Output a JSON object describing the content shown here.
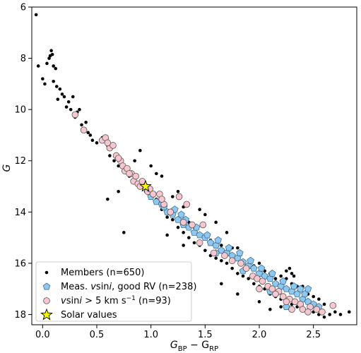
{
  "chart_data": {
    "type": "scatter",
    "xlabel_main": "G",
    "xlabel_sub1": "BP",
    "xlabel_mid": " − G",
    "xlabel_sub2": "RP",
    "ylabel": "G",
    "xlim": [
      -0.1,
      2.9
    ],
    "ylim": [
      18.4,
      6.0
    ],
    "y_inverted": true,
    "x_ticks": [
      0.0,
      0.5,
      1.0,
      1.5,
      2.0,
      2.5
    ],
    "x_tick_labels": [
      "0.0",
      "0.5",
      "1.0",
      "1.5",
      "2.0",
      "2.5"
    ],
    "y_ticks": [
      6,
      8,
      10,
      12,
      14,
      16,
      18
    ],
    "y_tick_labels": [
      "6",
      "8",
      "10",
      "12",
      "14",
      "16",
      "18"
    ],
    "grid": false,
    "legend_position": "lower-left",
    "series": [
      {
        "name": "Members (n=650)",
        "marker": "dot",
        "color": "#000000",
        "points": [
          [
            -0.06,
            6.3
          ],
          [
            -0.04,
            8.3
          ],
          [
            0.0,
            8.8
          ],
          [
            0.02,
            9.0
          ],
          [
            0.04,
            8.2
          ],
          [
            0.06,
            8.0
          ],
          [
            0.07,
            7.9
          ],
          [
            0.08,
            7.7
          ],
          [
            0.09,
            7.85
          ],
          [
            0.1,
            8.3
          ],
          [
            0.1,
            8.9
          ],
          [
            0.12,
            8.4
          ],
          [
            0.13,
            9.1
          ],
          [
            0.14,
            9.6
          ],
          [
            0.16,
            9.2
          ],
          [
            0.18,
            9.4
          ],
          [
            0.2,
            9.5
          ],
          [
            0.22,
            9.9
          ],
          [
            0.24,
            9.7
          ],
          [
            0.26,
            10.0
          ],
          [
            0.28,
            9.5
          ],
          [
            0.3,
            10.3
          ],
          [
            0.32,
            10.1
          ],
          [
            0.34,
            10.0
          ],
          [
            0.36,
            10.6
          ],
          [
            0.38,
            10.8
          ],
          [
            0.4,
            10.5
          ],
          [
            0.42,
            10.9
          ],
          [
            0.44,
            11.0
          ],
          [
            0.46,
            11.2
          ],
          [
            0.5,
            11.3
          ],
          [
            0.55,
            11.1
          ],
          [
            0.6,
            11.4
          ],
          [
            0.62,
            11.8
          ],
          [
            0.66,
            12.0
          ],
          [
            0.7,
            12.2
          ],
          [
            0.75,
            12.4
          ],
          [
            0.8,
            12.6
          ],
          [
            0.85,
            12.7
          ],
          [
            0.9,
            12.9
          ],
          [
            0.95,
            13.2
          ],
          [
            1.0,
            13.3
          ],
          [
            1.05,
            13.5
          ],
          [
            1.1,
            13.9
          ],
          [
            1.15,
            14.2
          ],
          [
            1.2,
            14.3
          ],
          [
            1.25,
            14.6
          ],
          [
            1.3,
            14.8
          ],
          [
            1.35,
            15.0
          ],
          [
            1.4,
            15.2
          ],
          [
            1.45,
            15.3
          ],
          [
            1.5,
            15.5
          ],
          [
            1.55,
            15.7
          ],
          [
            1.6,
            15.8
          ],
          [
            1.65,
            15.9
          ],
          [
            1.7,
            16.0
          ],
          [
            1.75,
            16.2
          ],
          [
            1.8,
            16.4
          ],
          [
            1.85,
            16.5
          ],
          [
            1.9,
            16.6
          ],
          [
            1.95,
            16.8
          ],
          [
            2.0,
            16.9
          ],
          [
            2.05,
            17.0
          ],
          [
            2.1,
            17.2
          ],
          [
            2.15,
            17.3
          ],
          [
            2.2,
            17.4
          ],
          [
            2.25,
            17.5
          ],
          [
            2.3,
            17.6
          ],
          [
            2.35,
            17.7
          ],
          [
            2.4,
            17.8
          ],
          [
            2.45,
            17.9
          ],
          [
            2.5,
            17.9
          ],
          [
            2.55,
            18.0
          ],
          [
            2.6,
            18.1
          ],
          [
            2.65,
            18.0
          ],
          [
            2.7,
            17.9
          ],
          [
            2.75,
            18.0
          ],
          [
            2.83,
            17.9
          ],
          [
            0.6,
            13.5
          ],
          [
            0.7,
            13.2
          ],
          [
            0.75,
            14.8
          ],
          [
            1.05,
            12.5
          ],
          [
            1.1,
            12.6
          ],
          [
            1.2,
            13.4
          ],
          [
            1.25,
            13.2
          ],
          [
            1.3,
            13.8
          ],
          [
            1.45,
            13.9
          ],
          [
            1.5,
            14.1
          ],
          [
            1.6,
            14.4
          ],
          [
            1.7,
            14.8
          ],
          [
            1.75,
            15.4
          ],
          [
            1.8,
            15.4
          ],
          [
            1.85,
            15.9
          ],
          [
            1.95,
            16.1
          ],
          [
            2.0,
            16.0
          ],
          [
            2.05,
            16.3
          ],
          [
            2.1,
            16.4
          ],
          [
            2.15,
            16.6
          ],
          [
            2.2,
            16.5
          ],
          [
            2.25,
            16.6
          ],
          [
            2.3,
            16.8
          ],
          [
            2.35,
            16.9
          ],
          [
            2.4,
            16.9
          ],
          [
            2.45,
            17.2
          ],
          [
            2.5,
            17.3
          ],
          [
            2.55,
            17.4
          ],
          [
            2.6,
            17.6
          ],
          [
            2.3,
            17.1
          ],
          [
            1.65,
            16.8
          ],
          [
            1.8,
            17.2
          ],
          [
            2.2,
            17.7
          ],
          [
            1.15,
            14.9
          ],
          [
            1.3,
            15.3
          ],
          [
            0.9,
            11.6
          ],
          [
            0.85,
            12.0
          ],
          [
            1.0,
            12.2
          ],
          [
            2.1,
            17.8
          ],
          [
            2.0,
            17.5
          ],
          [
            2.25,
            16.3
          ],
          [
            2.3,
            16.4
          ],
          [
            2.28,
            16.2
          ],
          [
            2.32,
            16.5
          ],
          [
            1.55,
            15.1
          ],
          [
            1.65,
            15.3
          ],
          [
            1.35,
            14.4
          ],
          [
            1.4,
            14.6
          ]
        ]
      },
      {
        "name": "Meas. vsini, good RV (n=238)",
        "marker": "pentagon",
        "color": "#8fc8ef",
        "points": [
          [
            0.95,
            13.0
          ],
          [
            1.0,
            13.4
          ],
          [
            1.05,
            13.6
          ],
          [
            1.1,
            13.7
          ],
          [
            1.15,
            14.0
          ],
          [
            1.2,
            14.1
          ],
          [
            1.25,
            14.3
          ],
          [
            1.3,
            14.5
          ],
          [
            1.35,
            14.6
          ],
          [
            1.4,
            14.8
          ],
          [
            1.45,
            14.9
          ],
          [
            1.5,
            15.0
          ],
          [
            1.55,
            15.2
          ],
          [
            1.6,
            15.3
          ],
          [
            1.65,
            15.5
          ],
          [
            1.7,
            15.6
          ],
          [
            1.75,
            15.7
          ],
          [
            1.8,
            15.8
          ],
          [
            1.85,
            15.95
          ],
          [
            1.9,
            16.1
          ],
          [
            1.95,
            16.2
          ],
          [
            2.0,
            16.4
          ],
          [
            2.05,
            16.5
          ],
          [
            2.1,
            16.6
          ],
          [
            2.15,
            16.8
          ],
          [
            2.2,
            16.9
          ],
          [
            2.25,
            17.0
          ],
          [
            2.3,
            17.1
          ],
          [
            2.35,
            17.2
          ],
          [
            2.4,
            17.4
          ],
          [
            2.45,
            17.5
          ],
          [
            2.5,
            17.6
          ],
          [
            2.55,
            17.7
          ],
          [
            1.22,
            13.9
          ],
          [
            1.32,
            14.3
          ],
          [
            1.42,
            14.6
          ],
          [
            1.52,
            14.9
          ],
          [
            1.62,
            15.1
          ],
          [
            1.72,
            15.4
          ],
          [
            1.82,
            15.6
          ],
          [
            1.92,
            15.9
          ],
          [
            2.02,
            16.2
          ],
          [
            2.12,
            16.4
          ],
          [
            2.22,
            16.7
          ],
          [
            2.32,
            16.9
          ],
          [
            2.42,
            17.2
          ],
          [
            2.45,
            17.0
          ],
          [
            2.25,
            17.7
          ],
          [
            2.1,
            17.1
          ],
          [
            1.85,
            16.3
          ],
          [
            1.6,
            15.6
          ],
          [
            1.12,
            13.8
          ],
          [
            1.28,
            14.1
          ],
          [
            2.38,
            17.0
          ]
        ]
      },
      {
        "name": "vsini > 5 km s^-1 (n=93)",
        "marker": "circle",
        "color": "#f7c6cf",
        "points": [
          [
            0.3,
            10.2
          ],
          [
            0.38,
            10.8
          ],
          [
            0.55,
            11.2
          ],
          [
            0.58,
            11.1
          ],
          [
            0.62,
            11.5
          ],
          [
            0.65,
            11.4
          ],
          [
            0.68,
            11.8
          ],
          [
            0.72,
            12.0
          ],
          [
            0.74,
            12.2
          ],
          [
            0.76,
            12.4
          ],
          [
            0.78,
            12.3
          ],
          [
            0.82,
            12.5
          ],
          [
            0.84,
            12.8
          ],
          [
            0.86,
            12.6
          ],
          [
            0.88,
            12.9
          ],
          [
            0.9,
            13.0
          ],
          [
            0.92,
            12.8
          ],
          [
            0.97,
            13.2
          ],
          [
            0.99,
            13.1
          ],
          [
            1.02,
            13.3
          ],
          [
            1.08,
            13.3
          ],
          [
            1.12,
            13.7
          ],
          [
            1.18,
            14.0
          ],
          [
            1.3,
            14.4
          ],
          [
            1.38,
            14.5
          ],
          [
            1.45,
            15.2
          ],
          [
            1.58,
            15.6
          ],
          [
            1.68,
            15.7
          ],
          [
            1.75,
            15.9
          ],
          [
            1.83,
            16.0
          ],
          [
            1.88,
            16.2
          ],
          [
            1.94,
            16.5
          ],
          [
            1.98,
            16.6
          ],
          [
            2.03,
            16.7
          ],
          [
            2.08,
            16.9
          ],
          [
            2.12,
            17.0
          ],
          [
            2.18,
            17.1
          ],
          [
            2.22,
            17.3
          ],
          [
            2.28,
            17.4
          ],
          [
            2.33,
            17.5
          ],
          [
            2.38,
            17.6
          ],
          [
            2.4,
            17.8
          ],
          [
            2.47,
            17.7
          ],
          [
            2.53,
            17.8
          ],
          [
            2.58,
            17.9
          ],
          [
            2.68,
            17.65
          ],
          [
            1.26,
            13.4
          ],
          [
            1.33,
            13.7
          ],
          [
            1.48,
            14.5
          ],
          [
            0.7,
            11.9
          ],
          [
            0.8,
            12.5
          ],
          [
            1.1,
            13.5
          ],
          [
            2.0,
            17.0
          ],
          [
            2.15,
            17.2
          ],
          [
            2.3,
            17.8
          ],
          [
            2.25,
            17.5
          ],
          [
            0.6,
            11.3
          ],
          [
            2.45,
            17.9
          ]
        ]
      },
      {
        "name": "Solar values",
        "marker": "star",
        "color": "#f5f500",
        "points": [
          [
            0.95,
            13.0
          ]
        ]
      }
    ]
  }
}
